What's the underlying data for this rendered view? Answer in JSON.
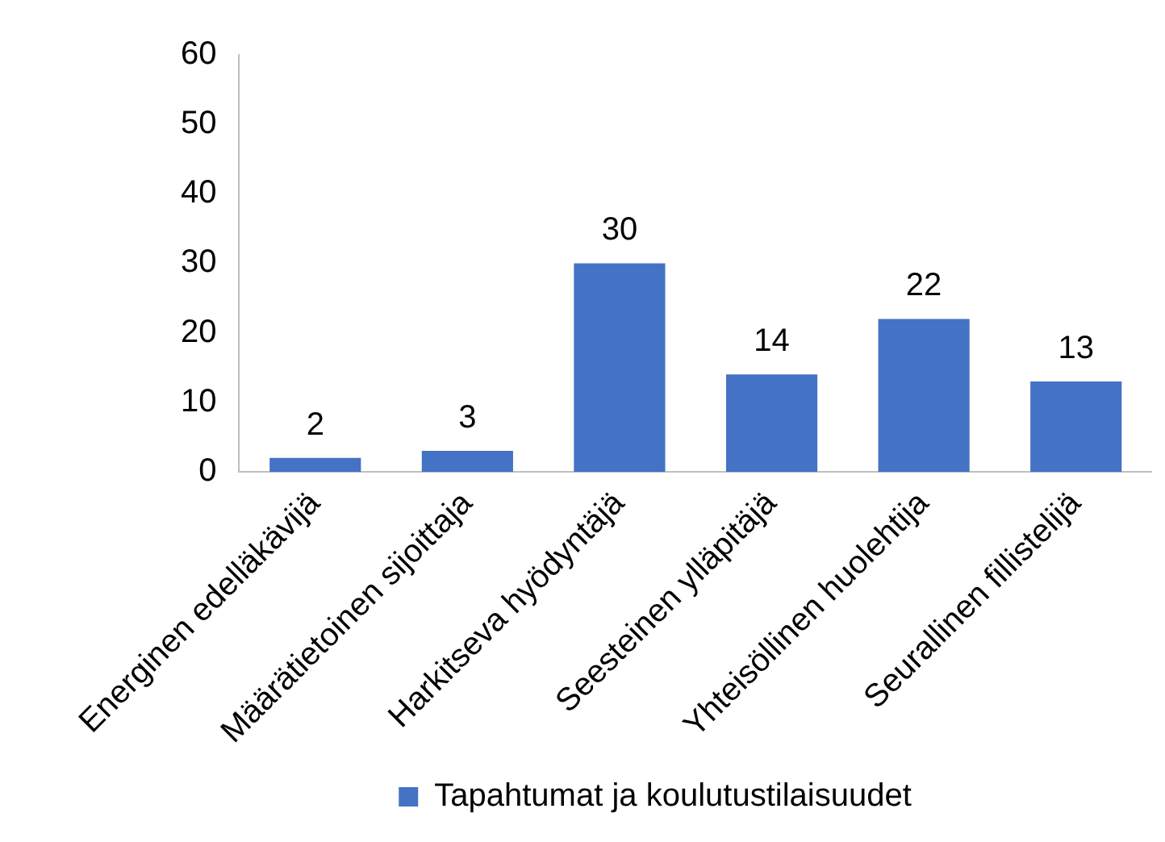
{
  "chart_data": {
    "type": "bar",
    "categories": [
      "Energinen edelläkävijä",
      "Määrätietoinen sijoittaja",
      "Harkitseva hyödyntäjä",
      "Seesteinen ylläpitäjä",
      "Yhteisöllinen huolehtija",
      "Seurallinen fillistelijä"
    ],
    "series": [
      {
        "name": "Tapahtumat ja koulutustilaisuudet",
        "color": "#4472c4",
        "values": [
          2,
          3,
          30,
          14,
          22,
          13
        ]
      }
    ],
    "ylim": [
      0,
      60
    ],
    "yticks": [
      0,
      10,
      20,
      30,
      40,
      50,
      60
    ],
    "grid": false,
    "legend": "bottom",
    "data_labels": true
  }
}
